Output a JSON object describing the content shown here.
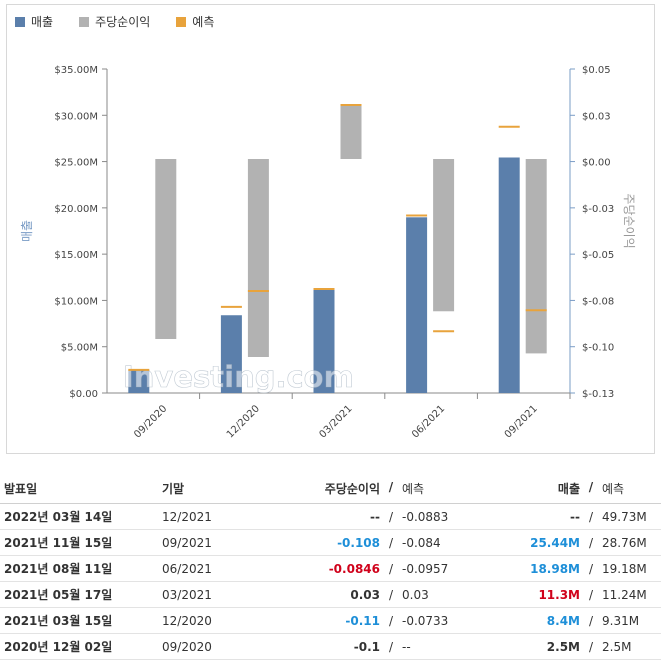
{
  "legend": {
    "revenue": "매출",
    "eps": "주당순이익",
    "forecast": "예측"
  },
  "colors": {
    "revenue": "#5b7fab",
    "eps": "#b2b2b2",
    "forecast": "#e8a33c",
    "axis": "#7a9cc6",
    "pos": "#1e8fd8",
    "neg": "#d0021b"
  },
  "watermark": "Investing.com",
  "chart_data": {
    "type": "bar",
    "categories": [
      "09/2020",
      "12/2020",
      "03/2021",
      "06/2021",
      "09/2021"
    ],
    "series": [
      {
        "name": "매출",
        "axis": "left",
        "values": [
          2.5,
          8.4,
          11.3,
          18.98,
          25.44
        ],
        "forecast": [
          2.5,
          9.31,
          11.24,
          19.18,
          28.76
        ]
      },
      {
        "name": "주당순이익",
        "axis": "right",
        "values": [
          -0.1,
          -0.11,
          0.03,
          -0.0846,
          -0.108
        ],
        "forecast": [
          null,
          -0.0733,
          0.03,
          -0.0957,
          -0.084
        ]
      }
    ],
    "left_axis": {
      "label": "매출",
      "ylim": [
        0,
        35
      ],
      "ticks": [
        "$0.00",
        "$5.00M",
        "$10.00M",
        "$15.00M",
        "$20.00M",
        "$25.00M",
        "$30.00M",
        "$35.00M"
      ]
    },
    "right_axis": {
      "label": "주당순이익",
      "ylim": [
        -0.13,
        0.05
      ],
      "ticks": [
        "$-0.13",
        "$-0.10",
        "$-0.08",
        "$-0.05",
        "$-0.03",
        "$0.00",
        "$0.03",
        "$0.05"
      ]
    }
  },
  "table": {
    "headers": {
      "date": "발표일",
      "period": "기말",
      "eps": "주당순이익",
      "slash": "/",
      "eps_fc": "예측",
      "rev": "매출",
      "rev_fc": "예측"
    },
    "rows": [
      {
        "date": "2022년 03월 14일",
        "period": "12/2021",
        "eps": "--",
        "eps_class": "neu",
        "eps_fc": "-0.0883",
        "rev": "--",
        "rev_class": "neu",
        "rev_fc": "49.73M"
      },
      {
        "date": "2021년 11월 15일",
        "period": "09/2021",
        "eps": "-0.108",
        "eps_class": "pos",
        "eps_fc": "-0.084",
        "rev": "25.44M",
        "rev_class": "pos",
        "rev_fc": "28.76M"
      },
      {
        "date": "2021년 08월 11일",
        "period": "06/2021",
        "eps": "-0.0846",
        "eps_class": "neg",
        "eps_fc": "-0.0957",
        "rev": "18.98M",
        "rev_class": "pos",
        "rev_fc": "19.18M"
      },
      {
        "date": "2021년 05월 17일",
        "period": "03/2021",
        "eps": "0.03",
        "eps_class": "neu",
        "eps_fc": "0.03",
        "rev": "11.3M",
        "rev_class": "neg",
        "rev_fc": "11.24M"
      },
      {
        "date": "2021년 03월 15일",
        "period": "12/2020",
        "eps": "-0.11",
        "eps_class": "pos",
        "eps_fc": "-0.0733",
        "rev": "8.4M",
        "rev_class": "pos",
        "rev_fc": "9.31M"
      },
      {
        "date": "2020년 12월 02일",
        "period": "09/2020",
        "eps": "-0.1",
        "eps_class": "neu",
        "eps_fc": "--",
        "rev": "2.5M",
        "rev_class": "neu",
        "rev_fc": "2.5M"
      }
    ]
  }
}
